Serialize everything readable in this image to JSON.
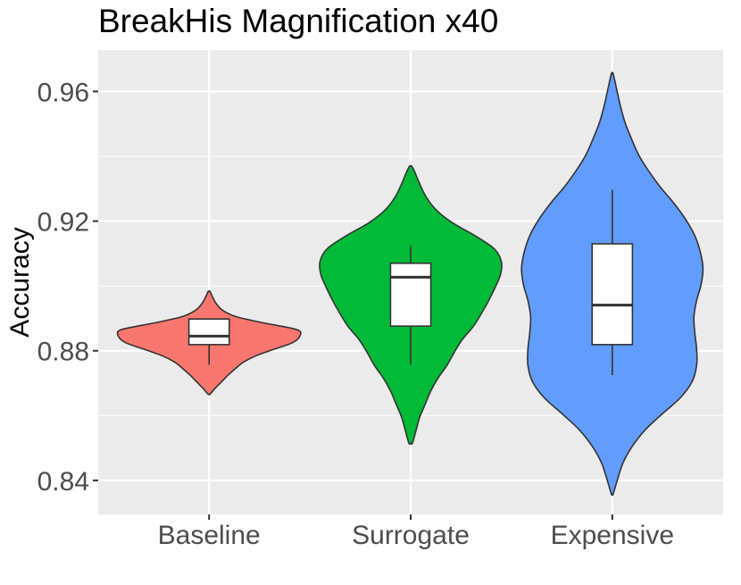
{
  "chart_data": {
    "type": "violin",
    "title": "BreakHis Magnification x40",
    "xlabel": "",
    "ylabel": "Accuracy",
    "ylim": [
      0.8295,
      0.9728
    ],
    "yticks": [
      0.84,
      0.88,
      0.92,
      0.96
    ],
    "ytick_labels": [
      "0.84",
      "0.88",
      "0.92",
      "0.96"
    ],
    "categories": [
      "Baseline",
      "Surrogate",
      "Expensive"
    ],
    "grid": true,
    "legend": "none",
    "series": [
      {
        "category": "Baseline",
        "color": "#F8766D",
        "box": {
          "whisker_low": 0.8757,
          "q1": 0.8819,
          "median": 0.8845,
          "q3": 0.8898,
          "whisker_high": 0.8898
        },
        "density": [
          [
            0.8666,
            0.01
          ],
          [
            0.8685,
            0.07
          ],
          [
            0.8705,
            0.14
          ],
          [
            0.8725,
            0.21
          ],
          [
            0.8745,
            0.29
          ],
          [
            0.8765,
            0.38
          ],
          [
            0.8785,
            0.52
          ],
          [
            0.8805,
            0.72
          ],
          [
            0.8825,
            0.92
          ],
          [
            0.8845,
            1.0
          ],
          [
            0.8865,
            0.97
          ],
          [
            0.8885,
            0.62
          ],
          [
            0.8905,
            0.3
          ],
          [
            0.8925,
            0.15
          ],
          [
            0.8945,
            0.08
          ],
          [
            0.8965,
            0.04
          ],
          [
            0.8983,
            0.01
          ]
        ]
      },
      {
        "category": "Surrogate",
        "color": "#00BA38",
        "box": {
          "whisker_low": 0.8757,
          "q1": 0.8876,
          "median": 0.9027,
          "q3": 0.907,
          "whisker_high": 0.9125
        },
        "density": [
          [
            0.8515,
            0.02
          ],
          [
            0.8555,
            0.06
          ],
          [
            0.8595,
            0.1
          ],
          [
            0.8635,
            0.16
          ],
          [
            0.8675,
            0.22
          ],
          [
            0.8715,
            0.3
          ],
          [
            0.8755,
            0.4
          ],
          [
            0.8795,
            0.48
          ],
          [
            0.8835,
            0.57
          ],
          [
            0.8875,
            0.69
          ],
          [
            0.8915,
            0.78
          ],
          [
            0.8955,
            0.86
          ],
          [
            0.8995,
            0.93
          ],
          [
            0.9035,
            0.99
          ],
          [
            0.9075,
            1.0
          ],
          [
            0.9115,
            0.92
          ],
          [
            0.9155,
            0.71
          ],
          [
            0.9195,
            0.46
          ],
          [
            0.9235,
            0.28
          ],
          [
            0.9275,
            0.17
          ],
          [
            0.9315,
            0.1
          ],
          [
            0.9355,
            0.04
          ],
          [
            0.937,
            0.01
          ]
        ]
      },
      {
        "category": "Expensive",
        "color": "#619CFF",
        "box": {
          "whisker_low": 0.8725,
          "q1": 0.8819,
          "median": 0.8941,
          "q3": 0.913,
          "whisker_high": 0.9297
        },
        "density": [
          [
            0.8358,
            0.01
          ],
          [
            0.8405,
            0.06
          ],
          [
            0.8455,
            0.12
          ],
          [
            0.8505,
            0.22
          ],
          [
            0.8555,
            0.36
          ],
          [
            0.8605,
            0.55
          ],
          [
            0.8655,
            0.75
          ],
          [
            0.8705,
            0.88
          ],
          [
            0.8755,
            0.93
          ],
          [
            0.8805,
            0.93
          ],
          [
            0.8855,
            0.91
          ],
          [
            0.8905,
            0.9
          ],
          [
            0.8955,
            0.93
          ],
          [
            0.9005,
            0.98
          ],
          [
            0.9055,
            1.0
          ],
          [
            0.9105,
            0.97
          ],
          [
            0.9155,
            0.91
          ],
          [
            0.9205,
            0.81
          ],
          [
            0.9255,
            0.68
          ],
          [
            0.9305,
            0.53
          ],
          [
            0.9355,
            0.4
          ],
          [
            0.9405,
            0.29
          ],
          [
            0.9455,
            0.21
          ],
          [
            0.9505,
            0.14
          ],
          [
            0.9555,
            0.09
          ],
          [
            0.9605,
            0.05
          ],
          [
            0.9655,
            0.01
          ]
        ]
      }
    ]
  }
}
